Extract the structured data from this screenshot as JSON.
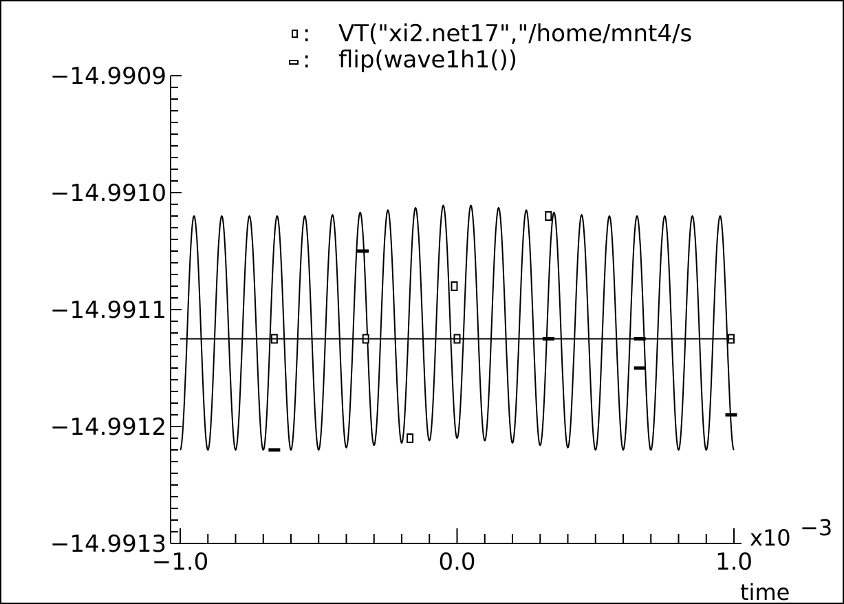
{
  "chart_data": {
    "type": "line",
    "title": "",
    "xlabel": "time",
    "x_multiplier_label": "x10",
    "x_multiplier_exponent": "−3",
    "xlim": [
      -1.0,
      1.0
    ],
    "ylim": [
      -14.9913,
      -14.9909
    ],
    "x_ticks": [
      {
        "value": -1.0,
        "label": "−1.0"
      },
      {
        "value": 0.0,
        "label": "0.0"
      },
      {
        "value": 1.0,
        "label": "1.0"
      }
    ],
    "y_ticks": [
      {
        "value": -14.9909,
        "label": "−14.9909"
      },
      {
        "value": -14.991,
        "label": "−14.9910"
      },
      {
        "value": -14.9911,
        "label": "−14.9911"
      },
      {
        "value": -14.9912,
        "label": "−14.9912"
      },
      {
        "value": -14.9913,
        "label": "−14.9913"
      }
    ],
    "legend": {
      "placement": "top",
      "entries": [
        {
          "marker": "open-square",
          "label": "VT(\"xi2.net17\",\"/home/mnt4/s"
        },
        {
          "marker": "dash",
          "label": "flip(wave1h1())"
        }
      ]
    },
    "series": [
      {
        "marker": "open-square",
        "kind": "oscillation",
        "cycles": 20,
        "envelope_x": [
          -1.0,
          -0.5,
          0.0,
          0.5,
          1.0
        ],
        "envelope_max": [
          -14.99102,
          -14.99102,
          -14.99101,
          -14.99102,
          -14.99102
        ],
        "envelope_min": [
          -14.99122,
          -14.99122,
          -14.99121,
          -14.99122,
          -14.99122
        ],
        "marker_points": [
          {
            "x": -0.66,
            "y": -14.991125
          },
          {
            "x": -0.33,
            "y": -14.991125
          },
          {
            "x": 0.0,
            "y": -14.991125
          },
          {
            "x": -0.17,
            "y": -14.99121
          },
          {
            "x": -0.01,
            "y": -14.99108
          },
          {
            "x": 0.33,
            "y": -14.99102
          },
          {
            "x": 0.99,
            "y": -14.991125
          }
        ]
      },
      {
        "marker": "dash",
        "kind": "line",
        "x": [
          -1.0,
          1.0
        ],
        "y": [
          -14.991125,
          -14.991125
        ],
        "marker_points": [
          {
            "x": -0.66,
            "y": -14.99122
          },
          {
            "x": -0.34,
            "y": -14.99105
          },
          {
            "x": 0.33,
            "y": -14.991125
          },
          {
            "x": 0.66,
            "y": -14.991125
          },
          {
            "x": 0.66,
            "y": -14.99115
          },
          {
            "x": 0.99,
            "y": -14.99119
          }
        ]
      }
    ],
    "colors": {
      "line": "#000000",
      "background": "#ffffff"
    },
    "grid": false
  }
}
